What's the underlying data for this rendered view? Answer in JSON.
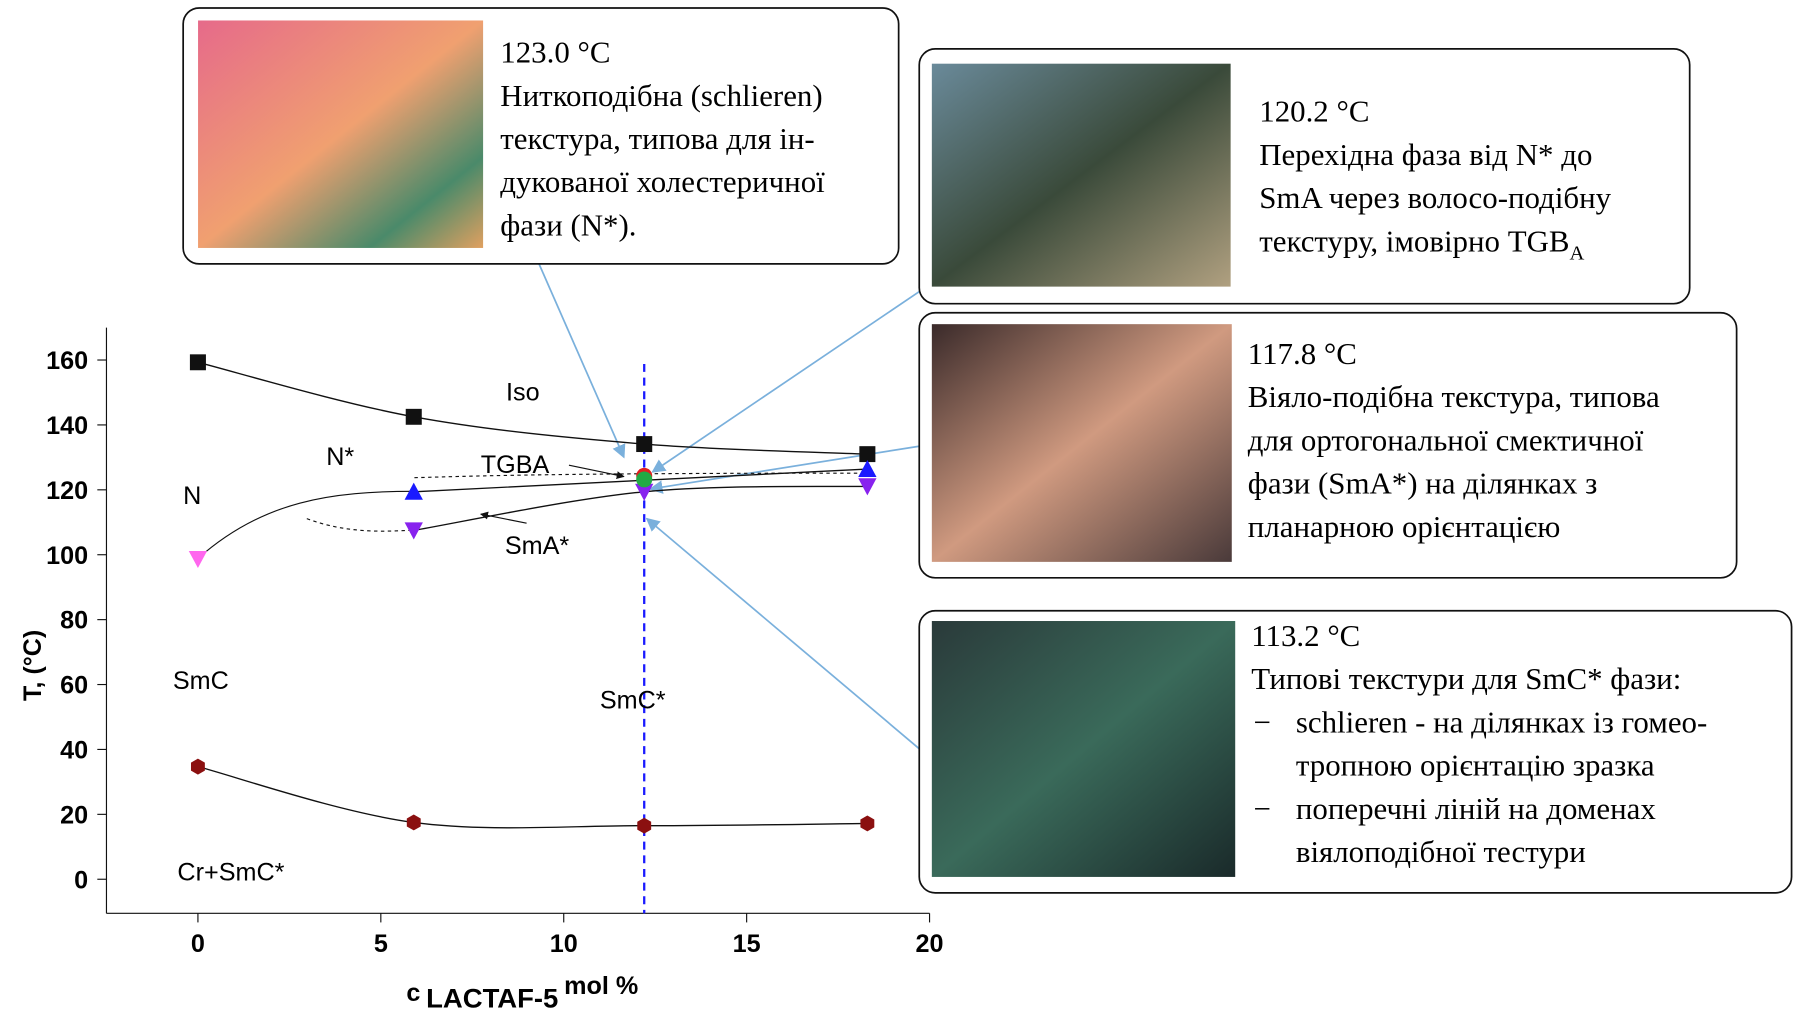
{
  "chart_data": {
    "type": "scatter",
    "x_label": [
      "c",
      "LACTAF-5",
      "mol %"
    ],
    "y_label": "T, (°C)",
    "xlim": [
      -2.5,
      20
    ],
    "ylim": [
      -10.5,
      170
    ],
    "xticks": [
      0,
      5,
      10,
      15,
      20
    ],
    "yticks": [
      0,
      20,
      40,
      60,
      80,
      100,
      120,
      140,
      160
    ],
    "vline": 12.2,
    "vline_color": "#1a1aff",
    "series": [
      {
        "color": "#111111",
        "marker": "square",
        "line": true,
        "x": [
          0,
          5.9,
          12.2,
          18.3
        ],
        "values": [
          159.3,
          142.5,
          134.1,
          131
        ]
      },
      {
        "color": "#1a1aff",
        "marker": "triangle-up",
        "line": true,
        "x": [
          5.9,
          18.3
        ],
        "values": [
          119.4,
          126.4
        ]
      },
      {
        "color": "#ff66ee",
        "marker": "triangle-down",
        "line": false,
        "x": [
          0
        ],
        "values": [
          98.7
        ]
      },
      {
        "color": "#8822ee",
        "marker": "triangle-down",
        "line": true,
        "x": [
          5.9,
          12.2,
          18.3
        ],
        "values": [
          107.5,
          119.4,
          121.1
        ]
      },
      {
        "color": "#e02020",
        "marker": "circle",
        "line": false,
        "x": [
          12.2
        ],
        "values": [
          124.3
        ]
      },
      {
        "color": "#22aa44",
        "marker": "circle",
        "line": false,
        "x": [
          12.2
        ],
        "values": [
          123.2
        ]
      },
      {
        "color": "#8b1010",
        "marker": "hexagon",
        "line": true,
        "x": [
          0,
          5.9,
          12.2,
          18.3
        ],
        "values": [
          34.7,
          17.5,
          16.5,
          17.2
        ]
      }
    ],
    "region_labels": [
      "Iso",
      "N*",
      "TGBA",
      "N",
      "SmA*",
      "SmC",
      "SmC*",
      "Cr+SmC*"
    ],
    "callouts": [
      {
        "temperature": "123.0 °C",
        "lines": [
          "Ниткоподібна (schlieren)",
          "текстура, типова для ін-",
          "дукованої холестеричної",
          "фази (N*)."
        ]
      },
      {
        "temperature": "120.2 °C",
        "lines": [
          "Перехідна фаза від N* до",
          "SmA через волосо-подібну",
          "текстуру, імовірно TGB"
        ],
        "subscript": "A"
      },
      {
        "temperature": "117.8 °C",
        "lines": [
          "Віяло-подібна текстура, типова",
          "для ортогональної смектичної",
          "фази (SmA*) на ділянках з",
          "планарною орієнтацією"
        ]
      },
      {
        "temperature": "113.2 °C",
        "lines": [
          "Типові текстури для SmC* фази:",
          "−",
          "schlieren - на ділянках із гомео-",
          "тропною орієнтацію зразка",
          "−",
          "поперечні ліній на доменах",
          "віялоподібної тестури"
        ]
      }
    ]
  }
}
